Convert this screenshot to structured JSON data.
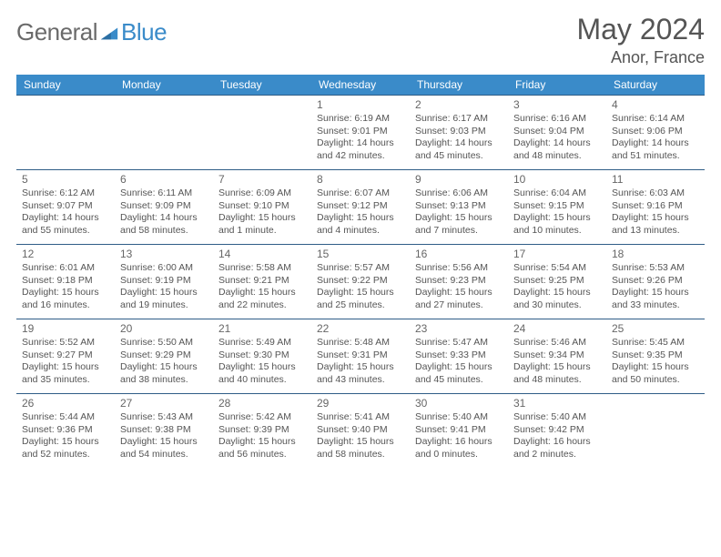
{
  "brand": {
    "part1": "General",
    "part2": "Blue",
    "part2_color": "#3a8bc9"
  },
  "title": "May 2024",
  "location": "Anor, France",
  "colors": {
    "header_bg": "#3a8bc9",
    "header_text": "#ffffff",
    "cell_border": "#2f5d87",
    "text": "#555555"
  },
  "day_labels": [
    "Sunday",
    "Monday",
    "Tuesday",
    "Wednesday",
    "Thursday",
    "Friday",
    "Saturday"
  ],
  "weeks": [
    [
      null,
      null,
      null,
      {
        "n": "1",
        "sr": "Sunrise: 6:19 AM",
        "ss": "Sunset: 9:01 PM",
        "d1": "Daylight: 14 hours",
        "d2": "and 42 minutes."
      },
      {
        "n": "2",
        "sr": "Sunrise: 6:17 AM",
        "ss": "Sunset: 9:03 PM",
        "d1": "Daylight: 14 hours",
        "d2": "and 45 minutes."
      },
      {
        "n": "3",
        "sr": "Sunrise: 6:16 AM",
        "ss": "Sunset: 9:04 PM",
        "d1": "Daylight: 14 hours",
        "d2": "and 48 minutes."
      },
      {
        "n": "4",
        "sr": "Sunrise: 6:14 AM",
        "ss": "Sunset: 9:06 PM",
        "d1": "Daylight: 14 hours",
        "d2": "and 51 minutes."
      }
    ],
    [
      {
        "n": "5",
        "sr": "Sunrise: 6:12 AM",
        "ss": "Sunset: 9:07 PM",
        "d1": "Daylight: 14 hours",
        "d2": "and 55 minutes."
      },
      {
        "n": "6",
        "sr": "Sunrise: 6:11 AM",
        "ss": "Sunset: 9:09 PM",
        "d1": "Daylight: 14 hours",
        "d2": "and 58 minutes."
      },
      {
        "n": "7",
        "sr": "Sunrise: 6:09 AM",
        "ss": "Sunset: 9:10 PM",
        "d1": "Daylight: 15 hours",
        "d2": "and 1 minute."
      },
      {
        "n": "8",
        "sr": "Sunrise: 6:07 AM",
        "ss": "Sunset: 9:12 PM",
        "d1": "Daylight: 15 hours",
        "d2": "and 4 minutes."
      },
      {
        "n": "9",
        "sr": "Sunrise: 6:06 AM",
        "ss": "Sunset: 9:13 PM",
        "d1": "Daylight: 15 hours",
        "d2": "and 7 minutes."
      },
      {
        "n": "10",
        "sr": "Sunrise: 6:04 AM",
        "ss": "Sunset: 9:15 PM",
        "d1": "Daylight: 15 hours",
        "d2": "and 10 minutes."
      },
      {
        "n": "11",
        "sr": "Sunrise: 6:03 AM",
        "ss": "Sunset: 9:16 PM",
        "d1": "Daylight: 15 hours",
        "d2": "and 13 minutes."
      }
    ],
    [
      {
        "n": "12",
        "sr": "Sunrise: 6:01 AM",
        "ss": "Sunset: 9:18 PM",
        "d1": "Daylight: 15 hours",
        "d2": "and 16 minutes."
      },
      {
        "n": "13",
        "sr": "Sunrise: 6:00 AM",
        "ss": "Sunset: 9:19 PM",
        "d1": "Daylight: 15 hours",
        "d2": "and 19 minutes."
      },
      {
        "n": "14",
        "sr": "Sunrise: 5:58 AM",
        "ss": "Sunset: 9:21 PM",
        "d1": "Daylight: 15 hours",
        "d2": "and 22 minutes."
      },
      {
        "n": "15",
        "sr": "Sunrise: 5:57 AM",
        "ss": "Sunset: 9:22 PM",
        "d1": "Daylight: 15 hours",
        "d2": "and 25 minutes."
      },
      {
        "n": "16",
        "sr": "Sunrise: 5:56 AM",
        "ss": "Sunset: 9:23 PM",
        "d1": "Daylight: 15 hours",
        "d2": "and 27 minutes."
      },
      {
        "n": "17",
        "sr": "Sunrise: 5:54 AM",
        "ss": "Sunset: 9:25 PM",
        "d1": "Daylight: 15 hours",
        "d2": "and 30 minutes."
      },
      {
        "n": "18",
        "sr": "Sunrise: 5:53 AM",
        "ss": "Sunset: 9:26 PM",
        "d1": "Daylight: 15 hours",
        "d2": "and 33 minutes."
      }
    ],
    [
      {
        "n": "19",
        "sr": "Sunrise: 5:52 AM",
        "ss": "Sunset: 9:27 PM",
        "d1": "Daylight: 15 hours",
        "d2": "and 35 minutes."
      },
      {
        "n": "20",
        "sr": "Sunrise: 5:50 AM",
        "ss": "Sunset: 9:29 PM",
        "d1": "Daylight: 15 hours",
        "d2": "and 38 minutes."
      },
      {
        "n": "21",
        "sr": "Sunrise: 5:49 AM",
        "ss": "Sunset: 9:30 PM",
        "d1": "Daylight: 15 hours",
        "d2": "and 40 minutes."
      },
      {
        "n": "22",
        "sr": "Sunrise: 5:48 AM",
        "ss": "Sunset: 9:31 PM",
        "d1": "Daylight: 15 hours",
        "d2": "and 43 minutes."
      },
      {
        "n": "23",
        "sr": "Sunrise: 5:47 AM",
        "ss": "Sunset: 9:33 PM",
        "d1": "Daylight: 15 hours",
        "d2": "and 45 minutes."
      },
      {
        "n": "24",
        "sr": "Sunrise: 5:46 AM",
        "ss": "Sunset: 9:34 PM",
        "d1": "Daylight: 15 hours",
        "d2": "and 48 minutes."
      },
      {
        "n": "25",
        "sr": "Sunrise: 5:45 AM",
        "ss": "Sunset: 9:35 PM",
        "d1": "Daylight: 15 hours",
        "d2": "and 50 minutes."
      }
    ],
    [
      {
        "n": "26",
        "sr": "Sunrise: 5:44 AM",
        "ss": "Sunset: 9:36 PM",
        "d1": "Daylight: 15 hours",
        "d2": "and 52 minutes."
      },
      {
        "n": "27",
        "sr": "Sunrise: 5:43 AM",
        "ss": "Sunset: 9:38 PM",
        "d1": "Daylight: 15 hours",
        "d2": "and 54 minutes."
      },
      {
        "n": "28",
        "sr": "Sunrise: 5:42 AM",
        "ss": "Sunset: 9:39 PM",
        "d1": "Daylight: 15 hours",
        "d2": "and 56 minutes."
      },
      {
        "n": "29",
        "sr": "Sunrise: 5:41 AM",
        "ss": "Sunset: 9:40 PM",
        "d1": "Daylight: 15 hours",
        "d2": "and 58 minutes."
      },
      {
        "n": "30",
        "sr": "Sunrise: 5:40 AM",
        "ss": "Sunset: 9:41 PM",
        "d1": "Daylight: 16 hours",
        "d2": "and 0 minutes."
      },
      {
        "n": "31",
        "sr": "Sunrise: 5:40 AM",
        "ss": "Sunset: 9:42 PM",
        "d1": "Daylight: 16 hours",
        "d2": "and 2 minutes."
      },
      null
    ]
  ]
}
